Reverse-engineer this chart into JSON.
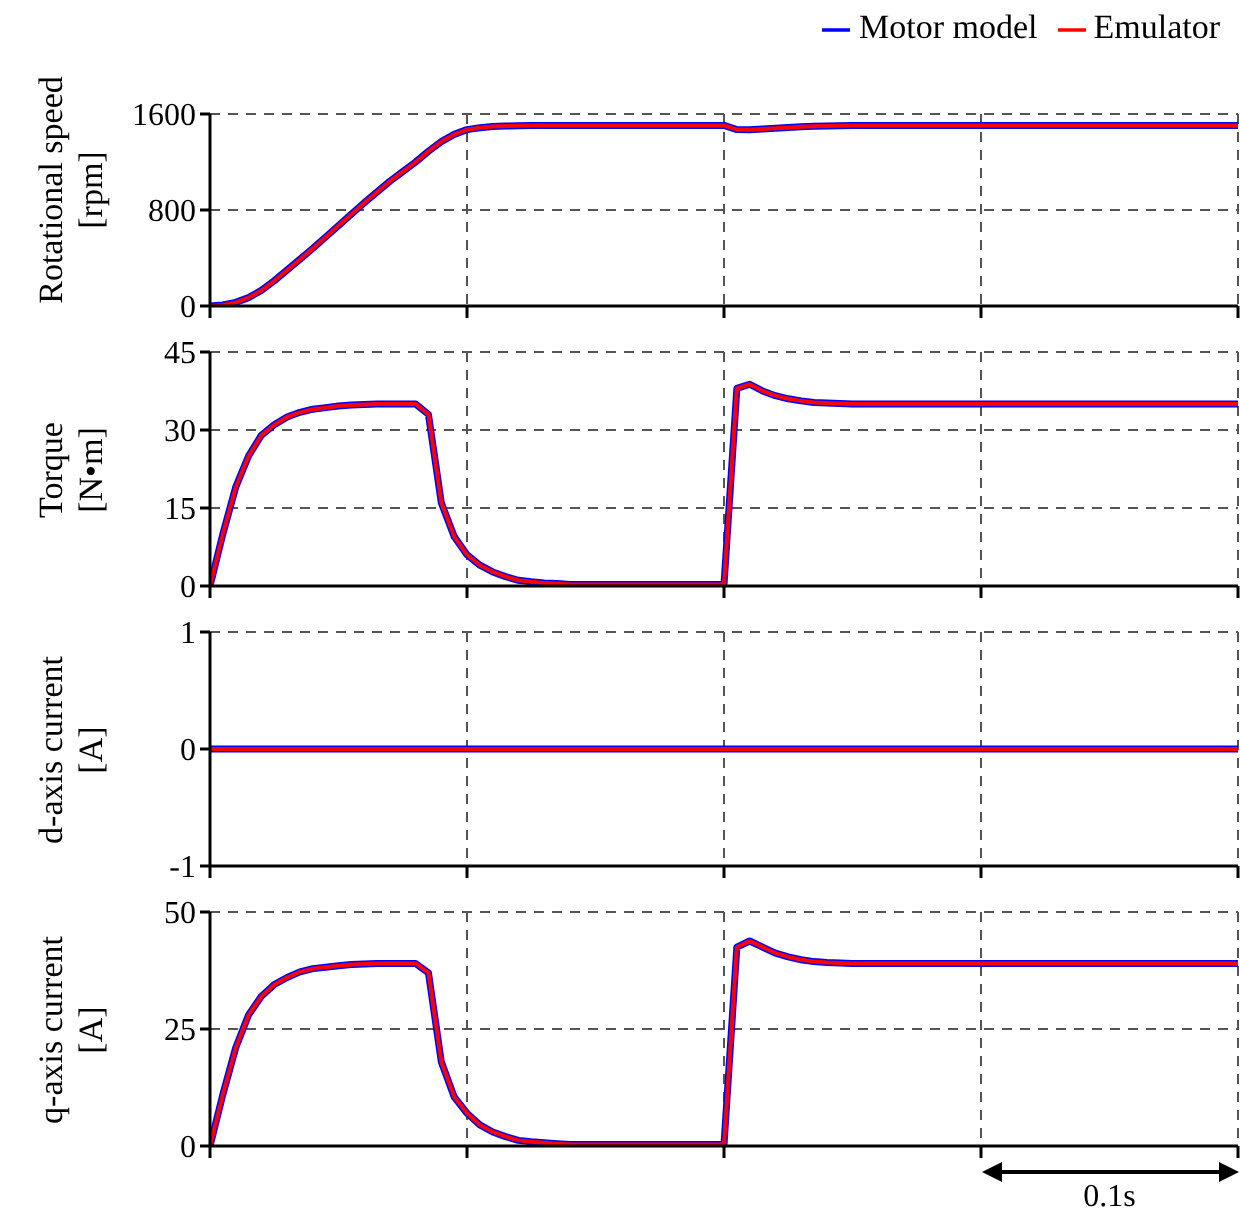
{
  "chart_data": [
    {
      "type": "line",
      "ylabel": "Rotational speed [rpm]",
      "categories": [
        null,
        null,
        null,
        null,
        null,
        null,
        null,
        null,
        null,
        null,
        null,
        null,
        null,
        null,
        null,
        null,
        null,
        null,
        null,
        null,
        null,
        null,
        null,
        null,
        null,
        null,
        null,
        null,
        null,
        null,
        null,
        null,
        null,
        null,
        null,
        null,
        null,
        null,
        null,
        null,
        null,
        null,
        null,
        null,
        null,
        null,
        null,
        null,
        null,
        null,
        null,
        null,
        null,
        null,
        null,
        null,
        null,
        null,
        null,
        null,
        null,
        null,
        null,
        null,
        null,
        null,
        null,
        null,
        null,
        null,
        null,
        null,
        null,
        null,
        null,
        null,
        null,
        null,
        null,
        null,
        null
      ],
      "series": [
        {
          "name": "Motor model",
          "color": "#0000ff",
          "values": [
            0,
            8,
            30,
            70,
            130,
            210,
            300,
            390,
            480,
            575,
            670,
            765,
            860,
            950,
            1040,
            1120,
            1200,
            1290,
            1370,
            1430,
            1470,
            1485,
            1495,
            1500,
            1502,
            1505,
            1505,
            1505,
            1505,
            1505,
            1505,
            1505,
            1505,
            1505,
            1505,
            1505,
            1505,
            1505,
            1505,
            1505,
            1505,
            1470,
            1468,
            1475,
            1482,
            1488,
            1493,
            1497,
            1500,
            1502,
            1505,
            1505,
            1505,
            1505,
            1505,
            1505,
            1505,
            1505,
            1505,
            1505,
            1505,
            1505,
            1505,
            1505,
            1505,
            1505,
            1505,
            1505,
            1505,
            1505,
            1505,
            1505,
            1505,
            1505,
            1505,
            1505,
            1505,
            1505,
            1505,
            1505,
            1505
          ]
        },
        {
          "name": "Emulator",
          "color": "#ff0000",
          "values": [
            0,
            8,
            30,
            70,
            130,
            210,
            300,
            390,
            480,
            575,
            670,
            765,
            860,
            950,
            1040,
            1120,
            1200,
            1290,
            1370,
            1430,
            1470,
            1485,
            1495,
            1500,
            1502,
            1505,
            1505,
            1505,
            1505,
            1505,
            1505,
            1505,
            1505,
            1505,
            1505,
            1505,
            1505,
            1505,
            1505,
            1505,
            1505,
            1470,
            1468,
            1475,
            1482,
            1488,
            1493,
            1497,
            1500,
            1502,
            1505,
            1505,
            1505,
            1505,
            1505,
            1505,
            1505,
            1505,
            1505,
            1505,
            1505,
            1505,
            1505,
            1505,
            1505,
            1505,
            1505,
            1505,
            1505,
            1505,
            1505,
            1505,
            1505,
            1505,
            1505,
            1505,
            1505,
            1505,
            1505,
            1505,
            1505
          ]
        }
      ],
      "ylim": [
        0,
        1600
      ],
      "yticks": [
        0,
        800,
        1600
      ],
      "grid": true,
      "legend": "top right",
      "tick_labels": "y",
      "line_style": "solid",
      "marker": "none"
    },
    {
      "type": "line",
      "ylabel": "Torque [N•m]",
      "categories": [
        null,
        null,
        null,
        null,
        null,
        null,
        null,
        null,
        null,
        null,
        null,
        null,
        null,
        null,
        null,
        null,
        null,
        null,
        null,
        null,
        null,
        null,
        null,
        null,
        null,
        null,
        null,
        null,
        null,
        null,
        null,
        null,
        null,
        null,
        null,
        null,
        null,
        null,
        null,
        null,
        null,
        null,
        null,
        null,
        null,
        null,
        null,
        null,
        null,
        null,
        null,
        null,
        null,
        null,
        null,
        null,
        null,
        null,
        null,
        null,
        null,
        null,
        null,
        null,
        null,
        null,
        null,
        null,
        null,
        null,
        null,
        null,
        null,
        null,
        null,
        null,
        null,
        null,
        null,
        null,
        null
      ],
      "series": [
        {
          "color": "#0000ff",
          "values": [
            0,
            10,
            19,
            25,
            29,
            31,
            32.5,
            33.4,
            34,
            34.3,
            34.6,
            34.8,
            34.9,
            35,
            35,
            35,
            35,
            33,
            16,
            9.5,
            6,
            4,
            2.7,
            1.8,
            1.1,
            0.8,
            0.6,
            0.5,
            0.3,
            0.3,
            0.3,
            0.3,
            0.3,
            0.3,
            0.3,
            0.3,
            0.3,
            0.3,
            0.3,
            0.3,
            0.3,
            38,
            38.8,
            37.5,
            36.6,
            36,
            35.6,
            35.3,
            35.2,
            35.1,
            35,
            35,
            35,
            35,
            35,
            35,
            35,
            35,
            35,
            35,
            35,
            35,
            35,
            35,
            35,
            35,
            35,
            35,
            35,
            35,
            35,
            35,
            35,
            35,
            35,
            35,
            35,
            35,
            35,
            35,
            35
          ]
        },
        {
          "color": "#ff0000",
          "values": [
            0,
            10,
            19,
            25,
            29,
            31,
            32.5,
            33.4,
            34,
            34.3,
            34.6,
            34.8,
            34.9,
            35,
            35,
            35,
            35,
            33,
            16,
            9.5,
            6,
            4,
            2.7,
            1.8,
            1.1,
            0.8,
            0.6,
            0.5,
            0.3,
            0.3,
            0.3,
            0.3,
            0.3,
            0.3,
            0.3,
            0.3,
            0.3,
            0.3,
            0.3,
            0.3,
            0.3,
            38,
            38.8,
            37.5,
            36.6,
            36,
            35.6,
            35.3,
            35.2,
            35.1,
            35,
            35,
            35,
            35,
            35,
            35,
            35,
            35,
            35,
            35,
            35,
            35,
            35,
            35,
            35,
            35,
            35,
            35,
            35,
            35,
            35,
            35,
            35,
            35,
            35,
            35,
            35,
            35,
            35,
            35,
            35
          ]
        }
      ],
      "ylim": [
        0,
        45
      ],
      "yticks": [
        0,
        15,
        30,
        45
      ],
      "grid": true,
      "tick_labels": "y",
      "line_style": "solid",
      "marker": "none"
    },
    {
      "type": "line",
      "ylabel": "d-axis current [A]",
      "categories": [
        null,
        null,
        null,
        null,
        null,
        null,
        null,
        null,
        null,
        null,
        null,
        null,
        null,
        null,
        null,
        null,
        null,
        null,
        null,
        null,
        null,
        null,
        null,
        null,
        null,
        null,
        null,
        null,
        null,
        null,
        null,
        null,
        null,
        null,
        null,
        null,
        null,
        null,
        null,
        null,
        null,
        null,
        null,
        null,
        null,
        null,
        null,
        null,
        null,
        null,
        null,
        null,
        null,
        null,
        null,
        null,
        null,
        null,
        null,
        null,
        null,
        null,
        null,
        null,
        null,
        null,
        null,
        null,
        null,
        null,
        null,
        null,
        null,
        null,
        null,
        null,
        null,
        null,
        null,
        null,
        null
      ],
      "series": [
        {
          "color": "#0000ff",
          "values": [
            0,
            0,
            0,
            0,
            0,
            0,
            0,
            0,
            0,
            0,
            0,
            0,
            0,
            0,
            0,
            0,
            0,
            0,
            0,
            0,
            0,
            0,
            0,
            0,
            0,
            0,
            0,
            0,
            0,
            0,
            0,
            0,
            0,
            0,
            0,
            0,
            0,
            0,
            0,
            0,
            0,
            0,
            0,
            0,
            0,
            0,
            0,
            0,
            0,
            0,
            0,
            0,
            0,
            0,
            0,
            0,
            0,
            0,
            0,
            0,
            0,
            0,
            0,
            0,
            0,
            0,
            0,
            0,
            0,
            0,
            0,
            0,
            0,
            0,
            0,
            0,
            0,
            0,
            0,
            0,
            0
          ]
        },
        {
          "color": "#ff0000",
          "values": [
            0,
            0,
            0,
            0,
            0,
            0,
            0,
            0,
            0,
            0,
            0,
            0,
            0,
            0,
            0,
            0,
            0,
            0,
            0,
            0,
            0,
            0,
            0,
            0,
            0,
            0,
            0,
            0,
            0,
            0,
            0,
            0,
            0,
            0,
            0,
            0,
            0,
            0,
            0,
            0,
            0,
            0,
            0,
            0,
            0,
            0,
            0,
            0,
            0,
            0,
            0,
            0,
            0,
            0,
            0,
            0,
            0,
            0,
            0,
            0,
            0,
            0,
            0,
            0,
            0,
            0,
            0,
            0,
            0,
            0,
            0,
            0,
            0,
            0,
            0,
            0,
            0,
            0,
            0,
            0,
            0
          ]
        }
      ],
      "ylim": [
        -1,
        1
      ],
      "yticks": [
        -1,
        0,
        1
      ],
      "grid": true,
      "tick_labels": "y",
      "line_style": "solid",
      "marker": "none"
    },
    {
      "type": "line",
      "ylabel": "q-axis current [A]",
      "categories": [
        null,
        null,
        null,
        null,
        null,
        null,
        null,
        null,
        null,
        null,
        null,
        null,
        null,
        null,
        null,
        null,
        null,
        null,
        null,
        null,
        null,
        null,
        null,
        null,
        null,
        null,
        null,
        null,
        null,
        null,
        null,
        null,
        null,
        null,
        null,
        null,
        null,
        null,
        null,
        null,
        null,
        null,
        null,
        null,
        null,
        null,
        null,
        null,
        null,
        null,
        null,
        null,
        null,
        null,
        null,
        null,
        null,
        null,
        null,
        null,
        null,
        null,
        null,
        null,
        null,
        null,
        null,
        null,
        null,
        null,
        null,
        null,
        null,
        null,
        null,
        null,
        null,
        null,
        null,
        null,
        null
      ],
      "series": [
        {
          "color": "#0000ff",
          "values": [
            0,
            11,
            21,
            28,
            32,
            34.5,
            36,
            37.2,
            37.9,
            38.2,
            38.5,
            38.8,
            38.9,
            39,
            39,
            39,
            39,
            37,
            18,
            10.5,
            7,
            4.5,
            3,
            2,
            1.2,
            0.9,
            0.7,
            0.5,
            0.3,
            0.3,
            0.3,
            0.3,
            0.3,
            0.3,
            0.3,
            0.3,
            0.3,
            0.3,
            0.3,
            0.3,
            0.3,
            42.5,
            43.8,
            42.5,
            41.2,
            40.4,
            39.8,
            39.4,
            39.2,
            39.1,
            39,
            39,
            39,
            39,
            39,
            39,
            39,
            39,
            39,
            39,
            39,
            39,
            39,
            39,
            39,
            39,
            39,
            39,
            39,
            39,
            39,
            39,
            39,
            39,
            39,
            39,
            39,
            39,
            39,
            39,
            39
          ]
        },
        {
          "color": "#ff0000",
          "values": [
            0,
            11,
            21,
            28,
            32,
            34.5,
            36,
            37.2,
            37.9,
            38.2,
            38.5,
            38.8,
            38.9,
            39,
            39,
            39,
            39,
            37,
            18,
            10.5,
            7,
            4.5,
            3,
            2,
            1.2,
            0.9,
            0.7,
            0.5,
            0.3,
            0.3,
            0.3,
            0.3,
            0.3,
            0.3,
            0.3,
            0.3,
            0.3,
            0.3,
            0.3,
            0.3,
            0.3,
            42.5,
            43.8,
            42.5,
            41.2,
            40.4,
            39.8,
            39.4,
            39.2,
            39.1,
            39,
            39,
            39,
            39,
            39,
            39,
            39,
            39,
            39,
            39,
            39,
            39,
            39,
            39,
            39,
            39,
            39,
            39,
            39,
            39,
            39,
            39,
            39,
            39,
            39,
            39,
            39,
            39,
            39,
            39,
            39
          ]
        }
      ],
      "ylim": [
        0,
        50
      ],
      "yticks": [
        0,
        25,
        50
      ],
      "grid": true,
      "tick_labels": "y",
      "line_style": "solid",
      "marker": "none",
      "annotations": [
        "0.1s"
      ]
    }
  ]
}
